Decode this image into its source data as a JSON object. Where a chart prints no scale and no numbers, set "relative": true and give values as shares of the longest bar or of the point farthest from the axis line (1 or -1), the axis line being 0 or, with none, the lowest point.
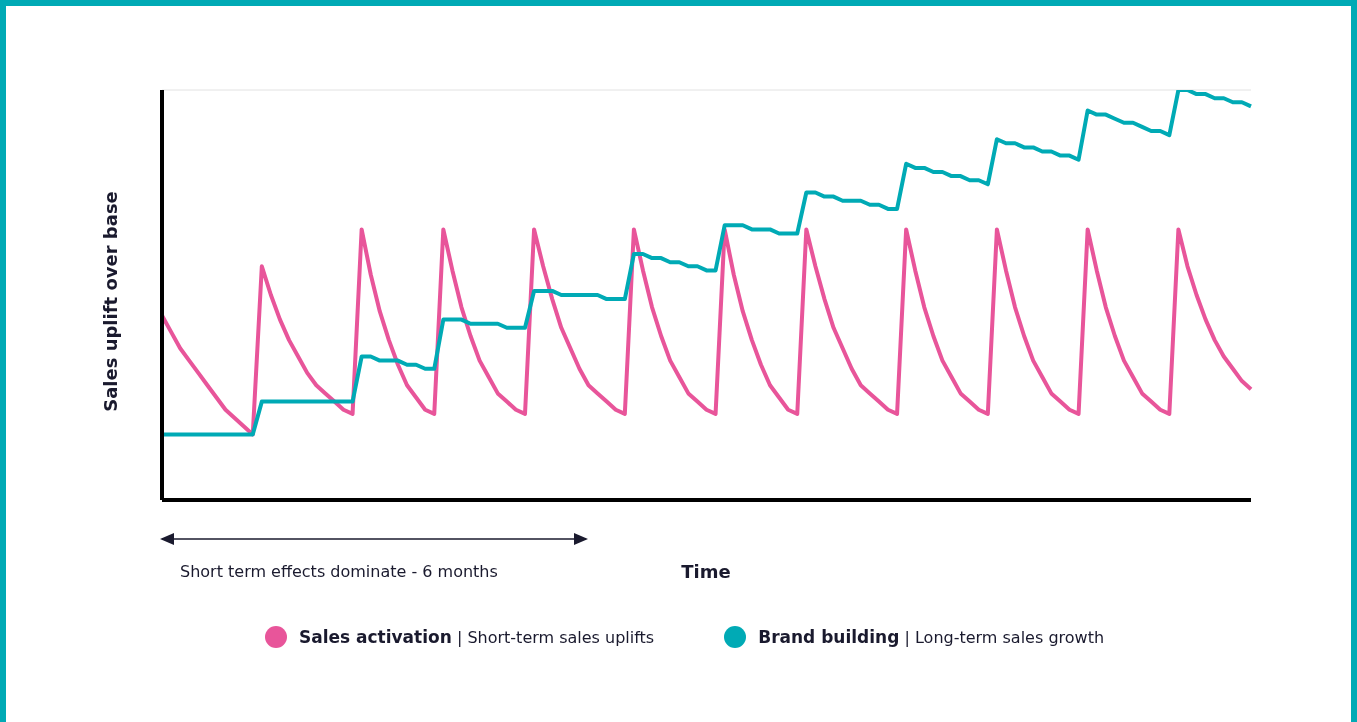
{
  "chart_data": {
    "type": "line",
    "relative": true,
    "xlabel": "Time",
    "ylabel": "Sales uplift over base",
    "annotations": [
      "Short term effects dominate - 6 months"
    ],
    "grid": "y",
    "legend": "bottom",
    "marker": "none",
    "line_style": "solid",
    "categories": [
      null,
      null,
      null,
      null,
      null,
      null,
      null,
      null,
      null,
      null,
      null,
      null,
      null,
      null,
      null,
      null,
      null,
      null,
      null,
      null,
      null,
      null,
      null,
      null,
      null,
      null,
      null,
      null,
      null,
      null,
      null,
      null,
      null,
      null,
      null,
      null,
      null,
      null,
      null,
      null,
      null,
      null,
      null,
      null,
      null,
      null,
      null,
      null,
      null,
      null,
      null,
      null,
      null,
      null,
      null,
      null,
      null,
      null,
      null,
      null,
      null,
      null,
      null,
      null,
      null,
      null,
      null,
      null,
      null,
      null,
      null,
      null,
      null,
      null,
      null,
      null,
      null,
      null,
      null,
      null,
      null,
      null,
      null,
      null,
      null,
      null,
      null,
      null,
      null,
      null,
      null,
      null,
      null,
      null,
      null,
      null,
      null,
      null,
      null,
      null,
      null,
      null,
      null,
      null,
      null,
      null,
      null,
      null,
      null,
      null,
      null,
      null,
      null,
      null,
      null,
      null,
      null,
      null,
      null,
      null,
      null
    ],
    "series": [
      {
        "name": "Sales activation | Short-term sales uplifts",
        "color": "#e8559a",
        "values": [
          0.45,
          0.41,
          0.37,
          0.34,
          0.31,
          0.28,
          0.25,
          0.22,
          0.2,
          0.18,
          0.16,
          0.57,
          0.5,
          0.44,
          0.39,
          0.35,
          0.31,
          0.28,
          0.26,
          0.24,
          0.22,
          0.21,
          0.66,
          0.55,
          0.46,
          0.39,
          0.33,
          0.28,
          0.25,
          0.22,
          0.21,
          0.66,
          0.56,
          0.47,
          0.4,
          0.34,
          0.3,
          0.26,
          0.24,
          0.22,
          0.21,
          0.66,
          0.57,
          0.49,
          0.42,
          0.37,
          0.32,
          0.28,
          0.26,
          0.24,
          0.22,
          0.21,
          0.66,
          0.56,
          0.47,
          0.4,
          0.34,
          0.3,
          0.26,
          0.24,
          0.22,
          0.21,
          0.66,
          0.55,
          0.46,
          0.39,
          0.33,
          0.28,
          0.25,
          0.22,
          0.21,
          0.66,
          0.57,
          0.49,
          0.42,
          0.37,
          0.32,
          0.28,
          0.26,
          0.24,
          0.22,
          0.21,
          0.66,
          0.56,
          0.47,
          0.4,
          0.34,
          0.3,
          0.26,
          0.24,
          0.22,
          0.21,
          0.66,
          0.56,
          0.47,
          0.4,
          0.34,
          0.3,
          0.26,
          0.24,
          0.22,
          0.21,
          0.66,
          0.56,
          0.47,
          0.4,
          0.34,
          0.3,
          0.26,
          0.24,
          0.22,
          0.21,
          0.66,
          0.57,
          0.5,
          0.44,
          0.39,
          0.35,
          0.32,
          0.29,
          0.27
        ]
      },
      {
        "name": "Brand building | Long-term sales growth",
        "color": "#00aab5",
        "values": [
          0.16,
          0.16,
          0.16,
          0.16,
          0.16,
          0.16,
          0.16,
          0.16,
          0.16,
          0.16,
          0.16,
          0.24,
          0.24,
          0.24,
          0.24,
          0.24,
          0.24,
          0.24,
          0.24,
          0.24,
          0.24,
          0.24,
          0.35,
          0.35,
          0.34,
          0.34,
          0.34,
          0.33,
          0.33,
          0.32,
          0.32,
          0.44,
          0.44,
          0.44,
          0.43,
          0.43,
          0.43,
          0.43,
          0.42,
          0.42,
          0.42,
          0.51,
          0.51,
          0.51,
          0.5,
          0.5,
          0.5,
          0.5,
          0.5,
          0.49,
          0.49,
          0.49,
          0.6,
          0.6,
          0.59,
          0.59,
          0.58,
          0.58,
          0.57,
          0.57,
          0.56,
          0.56,
          0.67,
          0.67,
          0.67,
          0.66,
          0.66,
          0.66,
          0.65,
          0.65,
          0.65,
          0.75,
          0.75,
          0.74,
          0.74,
          0.73,
          0.73,
          0.73,
          0.72,
          0.72,
          0.71,
          0.71,
          0.82,
          0.81,
          0.81,
          0.8,
          0.8,
          0.79,
          0.79,
          0.78,
          0.78,
          0.77,
          0.88,
          0.87,
          0.87,
          0.86,
          0.86,
          0.85,
          0.85,
          0.84,
          0.84,
          0.83,
          0.95,
          0.94,
          0.94,
          0.93,
          0.92,
          0.92,
          0.91,
          0.9,
          0.9,
          0.89,
          1.0,
          1.0,
          0.99,
          0.99,
          0.98,
          0.98,
          0.97,
          0.97,
          0.96
        ]
      }
    ]
  }
}
